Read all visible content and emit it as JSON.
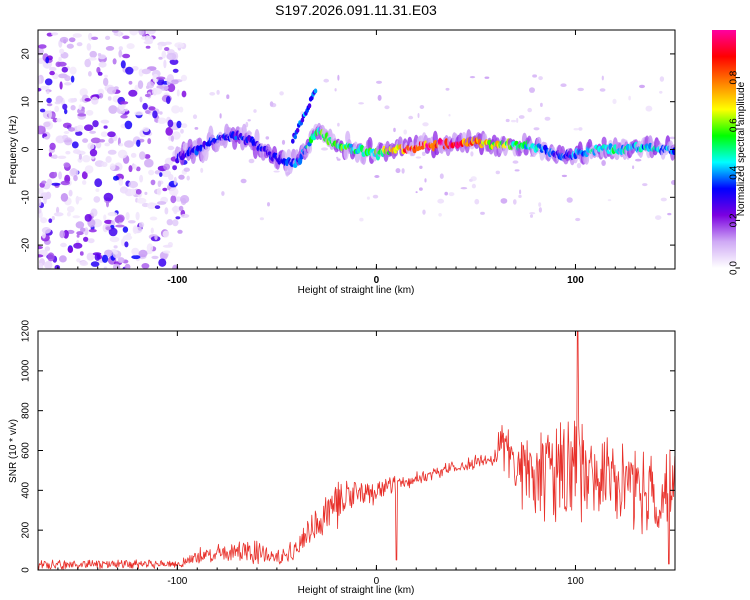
{
  "title": "S197.2026.091.11.31.E03",
  "colors": {
    "snr_line": "#e8302a",
    "frame": "#000000",
    "background": "#ffffff"
  },
  "chart_data": [
    {
      "type": "heatmap",
      "name": "spectrogram",
      "title": "S197.2026.091.11.31.E03",
      "xlabel": "Height of straight line (km)",
      "ylabel": "Frequency (Hz)",
      "xlim": [
        -170,
        150
      ],
      "ylim": [
        -25,
        25
      ],
      "xticks": [
        -100,
        0,
        100
      ],
      "xtick_labels": [
        "-100",
        "0",
        "100"
      ],
      "yticks": [
        20,
        10,
        0,
        -10,
        -20
      ],
      "ytick_labels": [
        "20",
        "10",
        "0",
        "-10",
        "-20"
      ],
      "colorbar": {
        "label": "Normalized spectral amplitude",
        "range": [
          0,
          1
        ],
        "ticks": [
          0.0,
          0.2,
          0.4,
          0.6,
          0.8
        ],
        "tick_labels": [
          "0.0",
          "0.2",
          "0.4",
          "0.6",
          "0.8"
        ],
        "colors": [
          "#ffffff",
          "#cfa9f5",
          "#7b00e0",
          "#0000ff",
          "#00ffff",
          "#00ff00",
          "#ffff00",
          "#ff8000",
          "#ff0000",
          "#ff00a0"
        ]
      },
      "ridge": {
        "x": [
          -100,
          -90,
          -80,
          -70,
          -60,
          -50,
          -40,
          -30,
          -20,
          -10,
          0,
          10,
          20,
          30,
          40,
          50,
          60,
          70,
          80,
          90,
          100,
          110,
          120,
          130,
          140,
          150
        ],
        "freq": [
          -2,
          0,
          2,
          3,
          1,
          -2,
          -3,
          4,
          1,
          0,
          -1,
          0,
          0.5,
          1,
          1,
          1.5,
          1,
          1,
          0.5,
          -1,
          -1,
          0,
          0,
          0.5,
          0,
          0
        ],
        "amplitude": [
          0.3,
          0.35,
          0.35,
          0.35,
          0.3,
          0.35,
          0.4,
          0.55,
          0.6,
          0.5,
          0.55,
          0.8,
          0.9,
          0.95,
          1.0,
          0.8,
          0.7,
          0.55,
          0.45,
          0.35,
          0.4,
          0.5,
          0.5,
          0.45,
          0.45,
          0.4
        ]
      },
      "noise_region": {
        "x_from": -170,
        "x_to": -96
      }
    },
    {
      "type": "line",
      "name": "snr",
      "xlabel": "Height of straight line (km)",
      "ylabel": "SNR (10 * v/v)",
      "xlim": [
        -170,
        150
      ],
      "ylim": [
        0,
        1200
      ],
      "xticks": [
        -100,
        0,
        100
      ],
      "xtick_labels": [
        "-100",
        "0",
        "100"
      ],
      "yticks": [
        0,
        200,
        400,
        600,
        800,
        1000,
        1200
      ],
      "ytick_labels": [
        "0",
        "200",
        "400",
        "600",
        "800",
        "1000",
        "1200"
      ],
      "envelope": {
        "x": [
          -170,
          -100,
          -95,
          -90,
          -80,
          -70,
          -60,
          -50,
          -40,
          -30,
          -20,
          -10,
          0,
          10,
          20,
          30,
          40,
          50,
          60,
          62,
          70,
          80,
          90,
          100,
          110,
          120,
          130,
          140,
          150
        ],
        "mean": [
          25,
          30,
          45,
          70,
          85,
          95,
          100,
          60,
          100,
          230,
          330,
          380,
          400,
          430,
          460,
          490,
          520,
          540,
          570,
          620,
          530,
          480,
          470,
          500,
          460,
          430,
          400,
          380,
          420
        ],
        "spread": [
          25,
          20,
          20,
          40,
          40,
          45,
          60,
          30,
          60,
          90,
          110,
          80,
          60,
          40,
          30,
          30,
          30,
          40,
          50,
          120,
          200,
          220,
          250,
          300,
          230,
          210,
          190,
          200,
          180
        ]
      },
      "notable_values": [
        {
          "x": 10,
          "y": 50
        },
        {
          "x": 101,
          "y": 1200
        },
        {
          "x": 147,
          "y": 30
        }
      ]
    }
  ]
}
